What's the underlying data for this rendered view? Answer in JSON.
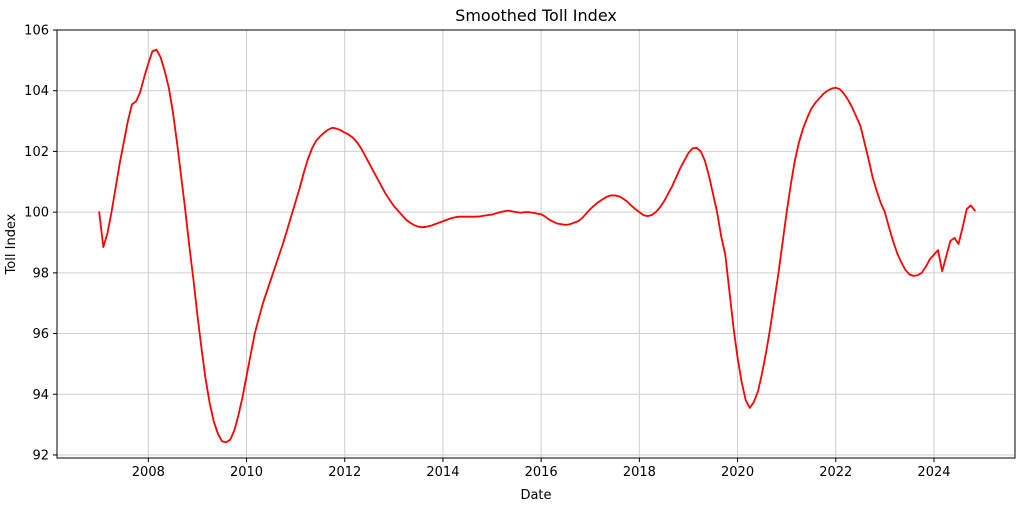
{
  "figure": {
    "title": "Smoothed Toll Index",
    "xlabel": "Date",
    "ylabel": "Toll Index"
  },
  "colors": {
    "line": "#ff0000",
    "grid": "#cfcfcf",
    "spine": "#000000",
    "tick": "#000000",
    "background": "#ffffff",
    "text": "#000000"
  },
  "chart_data": {
    "type": "line",
    "title": "Smoothed Toll Index",
    "xlabel": "Date",
    "ylabel": "Toll Index",
    "grid": true,
    "legend": "none",
    "line_color": "#ff0000",
    "xlim": [
      2006.14,
      2025.65
    ],
    "ylim": [
      91.9,
      106.0
    ],
    "xticks": [
      2008,
      2010,
      2012,
      2014,
      2016,
      2018,
      2020,
      2022,
      2024
    ],
    "yticks": [
      92,
      94,
      96,
      98,
      100,
      102,
      104,
      106
    ],
    "series": [
      {
        "name": "Smoothed Toll Index",
        "x_start": 2007.0,
        "x_step": 0.0833333,
        "values": [
          100.0,
          98.85,
          99.3,
          100.0,
          100.8,
          101.6,
          102.3,
          103.0,
          103.55,
          103.65,
          103.95,
          104.45,
          104.9,
          105.3,
          105.35,
          105.1,
          104.65,
          104.1,
          103.3,
          102.3,
          101.2,
          100.1,
          98.9,
          97.8,
          96.6,
          95.5,
          94.5,
          93.7,
          93.1,
          92.7,
          92.45,
          92.42,
          92.5,
          92.8,
          93.3,
          93.9,
          94.6,
          95.3,
          96.0,
          96.5,
          97.0,
          97.4,
          97.8,
          98.2,
          98.6,
          99.0,
          99.45,
          99.9,
          100.35,
          100.8,
          101.3,
          101.75,
          102.1,
          102.35,
          102.5,
          102.62,
          102.72,
          102.78,
          102.75,
          102.7,
          102.62,
          102.55,
          102.45,
          102.3,
          102.1,
          101.85,
          101.6,
          101.35,
          101.1,
          100.85,
          100.6,
          100.4,
          100.2,
          100.05,
          99.9,
          99.75,
          99.65,
          99.57,
          99.52,
          99.5,
          99.52,
          99.55,
          99.6,
          99.65,
          99.7,
          99.75,
          99.8,
          99.83,
          99.85,
          99.85,
          99.85,
          99.85,
          99.85,
          99.86,
          99.88,
          99.9,
          99.92,
          99.96,
          100.0,
          100.03,
          100.05,
          100.02,
          100.0,
          99.98,
          100.0,
          100.0,
          99.98,
          99.95,
          99.93,
          99.85,
          99.75,
          99.68,
          99.62,
          99.6,
          99.58,
          99.6,
          99.65,
          99.7,
          99.8,
          99.95,
          100.1,
          100.22,
          100.33,
          100.42,
          100.5,
          100.55,
          100.55,
          100.52,
          100.45,
          100.35,
          100.22,
          100.1,
          100.0,
          99.9,
          99.87,
          99.9,
          100.0,
          100.15,
          100.35,
          100.6,
          100.85,
          101.15,
          101.45,
          101.7,
          101.95,
          102.1,
          102.12,
          102.0,
          101.7,
          101.2,
          100.6,
          100.0,
          99.2,
          98.6,
          97.4,
          96.2,
          95.2,
          94.4,
          93.8,
          93.55,
          93.75,
          94.1,
          94.7,
          95.4,
          96.2,
          97.1,
          98.0,
          99.0,
          100.0,
          100.9,
          101.7,
          102.3,
          102.75,
          103.1,
          103.4,
          103.6,
          103.75,
          103.9,
          104.0,
          104.07,
          104.1,
          104.05,
          103.9,
          103.7,
          103.45,
          103.15,
          102.85,
          102.3,
          101.75,
          101.15,
          100.7,
          100.3,
          100.0,
          99.5,
          99.05,
          98.65,
          98.35,
          98.1,
          97.95,
          97.9,
          97.92,
          98.0,
          98.2,
          98.45,
          98.6,
          98.75,
          98.05,
          98.55,
          99.05,
          99.15,
          98.95,
          99.5,
          100.1,
          100.22,
          100.05
        ]
      }
    ]
  }
}
